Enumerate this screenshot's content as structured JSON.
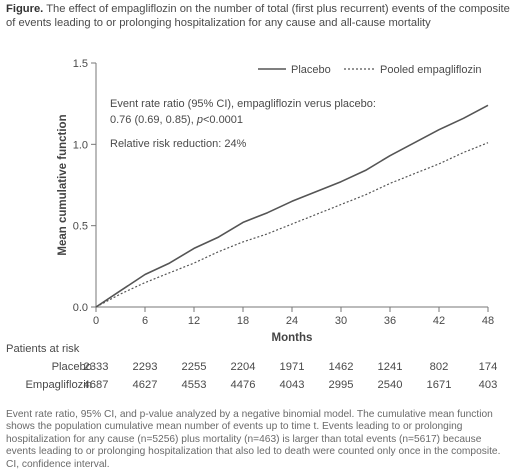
{
  "caption": {
    "label": "Figure.",
    "text": "The effect of empagliflozin on the number of total (first plus recurrent) events of the composite of events leading to or prolonging hospitalization for any cause and all-cause mortality"
  },
  "chart_data": {
    "type": "line",
    "xlabel": "Months",
    "ylabel": "Mean cumulative function",
    "xlim": [
      0,
      48
    ],
    "ylim": [
      0,
      1.5
    ],
    "x_ticks": [
      0,
      6,
      12,
      18,
      24,
      30,
      36,
      42,
      48
    ],
    "y_ticks": [
      0.0,
      0.5,
      1.0,
      1.5
    ],
    "y_tick_labels": [
      "0.0",
      "0.5",
      "1.0",
      "1.5"
    ],
    "grid": false,
    "legend_position": "top-right",
    "series": [
      {
        "name": "Placebo",
        "style": "solid",
        "color": "#555555",
        "x": [
          0,
          3,
          6,
          9,
          12,
          15,
          18,
          21,
          24,
          27,
          30,
          33,
          36,
          39,
          42,
          45,
          48
        ],
        "values": [
          0.0,
          0.1,
          0.2,
          0.27,
          0.36,
          0.43,
          0.52,
          0.58,
          0.65,
          0.71,
          0.77,
          0.84,
          0.93,
          1.01,
          1.09,
          1.16,
          1.24
        ]
      },
      {
        "name": "Pooled empagliflozin",
        "style": "dotted",
        "color": "#555555",
        "x": [
          0,
          3,
          6,
          9,
          12,
          15,
          18,
          21,
          24,
          27,
          30,
          33,
          36,
          39,
          42,
          45,
          48
        ],
        "values": [
          0.0,
          0.08,
          0.15,
          0.21,
          0.27,
          0.34,
          0.4,
          0.45,
          0.51,
          0.57,
          0.63,
          0.69,
          0.76,
          0.82,
          0.88,
          0.95,
          1.01
        ]
      }
    ],
    "annotations": [
      "Event rate ratio (95% CI), empagliflozin verus placebo:",
      "0.76 (0.69, 0.85), p<0.0001",
      "Relative risk reduction: 24%"
    ]
  },
  "risk_table": {
    "heading": "Patients at risk",
    "rows": [
      {
        "label": "Placebo",
        "values": [
          "2333",
          "2293",
          "2255",
          "2204",
          "1971",
          "1462",
          "1241",
          "802",
          "174"
        ]
      },
      {
        "label": "Empagliflozin",
        "values": [
          "4687",
          "4627",
          "4553",
          "4476",
          "4043",
          "2995",
          "2540",
          "1671",
          "403"
        ]
      }
    ]
  },
  "footnote": "Event rate ratio, 95% CI, and p-value analyzed by a negative binomial model. The cumulative mean function shows the population cumulative mean number of events up to time t. Events leading to or prolonging hospitalization for any cause (n=5256) plus mortality (n=463) is larger than total events (n=5617) because events leading to or prolonging hospitalization that also led to death were counted only once in the composite. CI, confidence interval."
}
